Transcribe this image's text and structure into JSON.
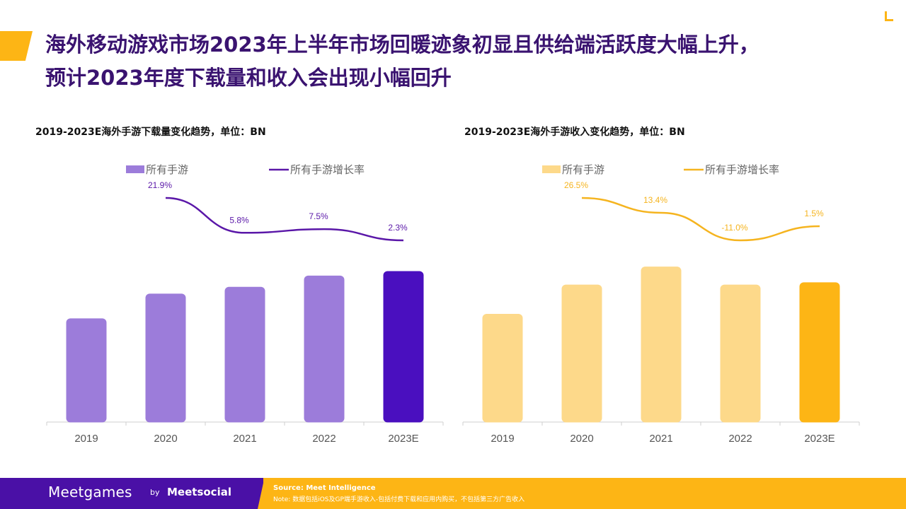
{
  "title": {
    "line1": "海外移动游戏市场2023年上半年市场回暖迹象初显且供给端活跃度大幅上升，",
    "line2": "预计2023年度下载量和收入会出现小幅回升"
  },
  "colors": {
    "accent": "#FDB515",
    "brand_purple": "#4A10A6",
    "title_text": "#3A1370"
  },
  "chart_data": [
    {
      "type": "bar",
      "title": "2019-2023E海外手游下载量变化趋势，单位：BN",
      "categories": [
        "2019",
        "2020",
        "2021",
        "2022",
        "2023E"
      ],
      "series": [
        {
          "name": "所有手游",
          "type": "bar",
          "values": [
            46,
            57,
            60,
            65,
            67
          ],
          "color": "#9C7CDA",
          "highlight_color": "#4A0FBF"
        },
        {
          "name": "所有手游增长率",
          "type": "line",
          "values": [
            null,
            21.9,
            5.8,
            7.5,
            2.3
          ],
          "labels": [
            "",
            "21.9%",
            "5.8%",
            "7.5%",
            "2.3%"
          ],
          "color": "#5A17A8"
        }
      ],
      "ylim": [
        0,
        80
      ],
      "legend": "top"
    },
    {
      "type": "bar",
      "title": "2019-2023E海外手游收入变化趋势，单位：BN",
      "categories": [
        "2019",
        "2020",
        "2021",
        "2022",
        "2023E"
      ],
      "series": [
        {
          "name": "所有手游",
          "type": "bar",
          "values": [
            48,
            61,
            69,
            61,
            62
          ],
          "color": "#FDD98A",
          "highlight_color": "#FDB515"
        },
        {
          "name": "所有手游增长率",
          "type": "line",
          "values": [
            null,
            26.5,
            13.4,
            -11.0,
            1.5
          ],
          "labels": [
            "",
            "26.5%",
            "13.4%",
            "-11.0%",
            "1.5%"
          ],
          "color": "#F5B41F"
        }
      ],
      "ylim": [
        0,
        80
      ],
      "legend": "top"
    }
  ],
  "footer": {
    "brand": "Meetgames",
    "by": "by",
    "brand2": "Meetsocial",
    "source": "Source: Meet Intelligence",
    "note": "Note: 数据包括iOS及GP端手游收入-包括付费下载和应用内购买，不包括第三方广告收入"
  }
}
